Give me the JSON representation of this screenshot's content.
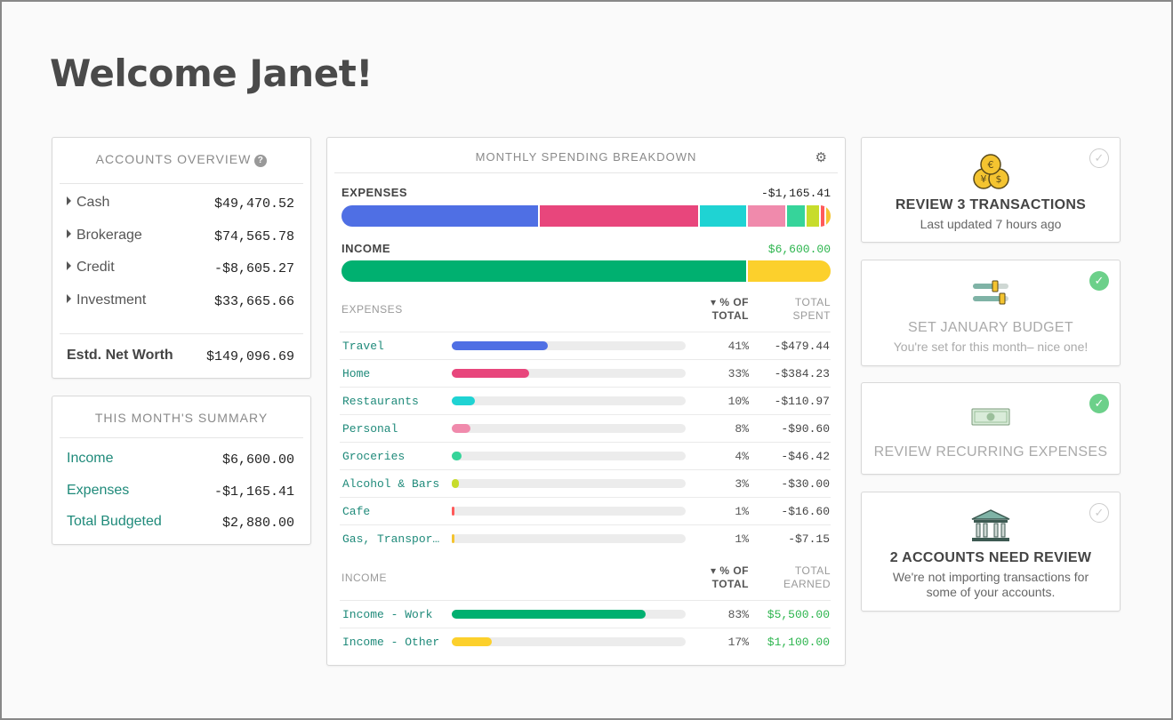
{
  "welcome": "Welcome Janet!",
  "accounts": {
    "title": "ACCOUNTS OVERVIEW",
    "help": "?",
    "items": [
      {
        "name": "Cash",
        "value": "$49,470.52"
      },
      {
        "name": "Brokerage",
        "value": "$74,565.78"
      },
      {
        "name": "Credit",
        "value": "-$8,605.27"
      },
      {
        "name": "Investment",
        "value": "$33,665.66"
      }
    ],
    "net_worth_label": "Estd. Net Worth",
    "net_worth_value": "$149,096.69"
  },
  "summary": {
    "title": "THIS MONTH'S SUMMARY",
    "items": [
      {
        "name": "Income",
        "value": "$6,600.00"
      },
      {
        "name": "Expenses",
        "value": "-$1,165.41"
      },
      {
        "name": "Total Budgeted",
        "value": "$2,880.00"
      }
    ]
  },
  "breakdown": {
    "title": "MONTHLY SPENDING BREAKDOWN",
    "expenses_label": "EXPENSES",
    "expenses_total": "-$1,165.41",
    "income_label": "INCOME",
    "income_total": "$6,600.00",
    "expenses_header": {
      "label": "EXPENSES",
      "pct": "▾ % OF",
      "pct2": "TOTAL",
      "total": "TOTAL",
      "total2": "SPENT"
    },
    "income_header": {
      "label": "INCOME",
      "pct": "▾ % OF",
      "pct2": "TOTAL",
      "total": "TOTAL",
      "total2": "EARNED"
    },
    "expenses": [
      {
        "name": "Travel",
        "pct": "41%",
        "fraction": 0.41,
        "amount": "-$479.44",
        "color": "#4f6fe4"
      },
      {
        "name": "Home",
        "pct": "33%",
        "fraction": 0.33,
        "amount": "-$384.23",
        "color": "#e8467c"
      },
      {
        "name": "Restaurants",
        "pct": "10%",
        "fraction": 0.1,
        "amount": "-$110.97",
        "color": "#1fd3d3"
      },
      {
        "name": "Personal",
        "pct": "8%",
        "fraction": 0.08,
        "amount": "-$90.60",
        "color": "#f08aac"
      },
      {
        "name": "Groceries",
        "pct": "4%",
        "fraction": 0.04,
        "amount": "-$46.42",
        "color": "#36d49a"
      },
      {
        "name": "Alcohol & Bars",
        "pct": "3%",
        "fraction": 0.03,
        "amount": "-$30.00",
        "color": "#c7dc2c"
      },
      {
        "name": "Cafe",
        "pct": "1%",
        "fraction": 0.01,
        "amount": "-$16.60",
        "color": "#ff5a5a"
      },
      {
        "name": "Gas, Transpor…",
        "pct": "1%",
        "fraction": 0.01,
        "amount": "-$7.15",
        "color": "#f4c430"
      }
    ],
    "income": [
      {
        "name": "Income - Work",
        "pct": "83%",
        "fraction": 0.83,
        "amount": "$5,500.00",
        "color": "#00b070"
      },
      {
        "name": "Income - Other",
        "pct": "17%",
        "fraction": 0.17,
        "amount": "$1,100.00",
        "color": "#fcd02c"
      }
    ]
  },
  "tasks": [
    {
      "title": "REVIEW 3 TRANSACTIONS",
      "subtitle": "Last updated 7 hours ago",
      "done": false,
      "icon": "coins-icon"
    },
    {
      "title": "SET JANUARY BUDGET",
      "subtitle": "You're set for this month– nice one!",
      "done": true,
      "icon": "sliders-icon"
    },
    {
      "title": "REVIEW RECURRING EXPENSES",
      "subtitle": "",
      "done": true,
      "icon": "banknote-icon"
    },
    {
      "title": "2 ACCOUNTS NEED REVIEW",
      "subtitle": "We're not importing transactions for some of your accounts.",
      "done": false,
      "icon": "bank-icon"
    }
  ],
  "check_mark": "✓",
  "gear": "⚙"
}
